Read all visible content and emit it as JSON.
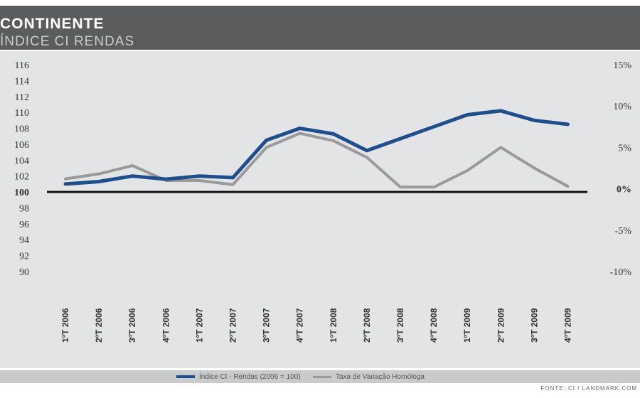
{
  "header": {
    "title": "CONTINENTE",
    "subtitle": "ÍNDICE CI RENDAS"
  },
  "legend": {
    "series1_label": "Índice CI - Rendas (2006 = 100)",
    "series2_label": "Taxa de Variação Homóloga"
  },
  "source": "FONTE: CI / LANDMARK.COM",
  "colors": {
    "series1": "#1f4e8c",
    "series2": "#9a9a9a",
    "header": "#5a5c5e",
    "panel": "#e3e4e6"
  },
  "chart_data": {
    "type": "line",
    "categories": [
      "1ºT 2006",
      "2ºT 2006",
      "3ºT 2006",
      "4ºT 2006",
      "1ºT 2007",
      "2ºT 2007",
      "3ºT 2007",
      "4ºT 2007",
      "1ºT 2008",
      "2ºT 2008",
      "3ºT 2008",
      "4ºT 2008",
      "1ºT 2009",
      "2ºT 2009",
      "3ºT 2009",
      "4ºT 2009"
    ],
    "left_axis": {
      "ticks": [
        "116",
        "114",
        "112",
        "110",
        "108",
        "106",
        "104",
        "102",
        "100",
        "98",
        "96",
        "94",
        "92",
        "90"
      ],
      "range": [
        90,
        116
      ]
    },
    "right_axis": {
      "ticks": [
        "15%",
        "10%",
        "5%",
        "0%",
        "-5%",
        "-10%"
      ],
      "range": [
        -10,
        15
      ]
    },
    "series": [
      {
        "name": "Índice CI - Rendas (2006 = 100)",
        "axis": "left",
        "values": [
          101.0,
          101.3,
          102.0,
          101.6,
          102.0,
          101.8,
          106.5,
          108.0,
          107.3,
          105.2,
          106.7,
          108.2,
          109.7,
          110.2,
          109.0,
          108.5
        ]
      },
      {
        "name": "Taxa de Variação Homóloga",
        "axis": "right",
        "values": [
          1.2,
          1.8,
          2.8,
          1.0,
          1.0,
          0.5,
          5.0,
          6.7,
          5.8,
          3.8,
          0.2,
          0.2,
          2.2,
          5.0,
          2.5,
          0.3
        ]
      }
    ]
  }
}
